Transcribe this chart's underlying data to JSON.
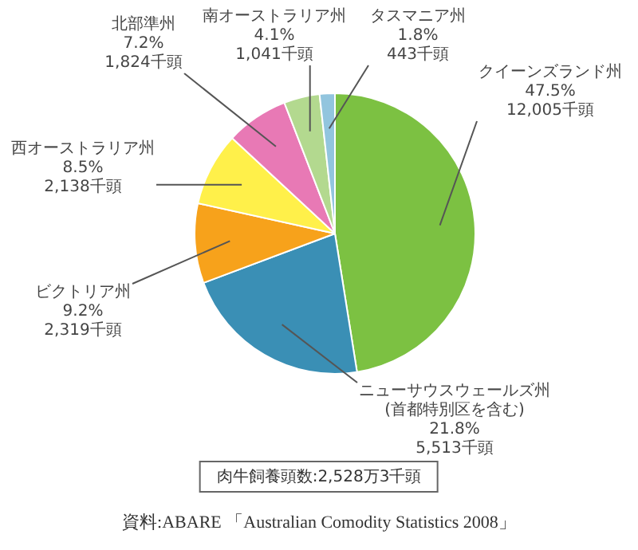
{
  "chart_data": {
    "type": "pie",
    "categories": [
      "クイーンズランド州",
      "ニューサウスウェールズ州\n(首都特別区を含む)",
      "ビクトリア州",
      "西オーストラリア州",
      "北部準州",
      "南オーストラリア州",
      "タスマニア州"
    ],
    "values": [
      12005,
      5513,
      2319,
      2138,
      1824,
      1041,
      443
    ],
    "value_labels": [
      "47.5%\n12,005千頭",
      "21.8%\n5,513千頭",
      "9.2%\n2,319千頭",
      "8.5%\n2,138千頭",
      "7.2%\n1,824千頭",
      "4.1%\n1,041千頭",
      "1.8%\n443千頭"
    ],
    "colors": [
      "#7cc142",
      "#3a8fb5",
      "#f7a21b",
      "#fff04a",
      "#e879b5",
      "#b3d98f",
      "#92c5de"
    ],
    "legend": false,
    "annotations": [
      "肉牛飼養頭数:2,528万3千頭",
      "資料:ABARE 「Australian Comodity Statistics 2008」"
    ]
  }
}
